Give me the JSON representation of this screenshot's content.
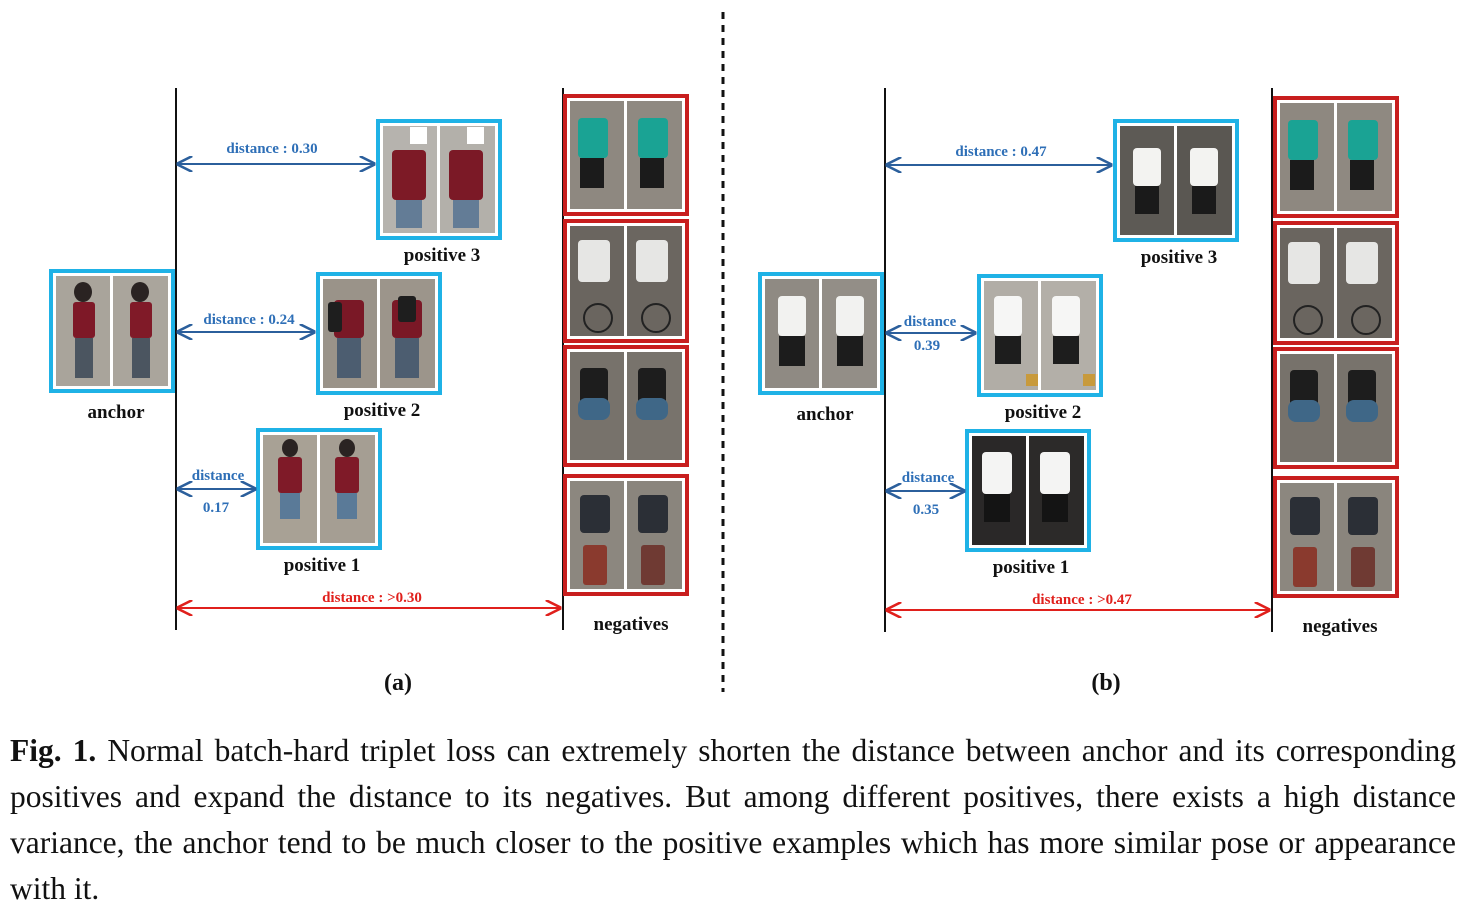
{
  "panels": [
    {
      "id": "a",
      "label": "(a)",
      "anchor_label": "anchor",
      "positives": [
        {
          "label": "positive 3",
          "distance_line1": "distance : 0.30",
          "distance_line2": ""
        },
        {
          "label": "positive 2",
          "distance_line1": "distance : 0.24",
          "distance_line2": ""
        },
        {
          "label": "positive 1",
          "distance_line1": "distance",
          "distance_line2": "0.17"
        }
      ],
      "negatives_label": "negatives",
      "negative_distance": "distance : >0.30"
    },
    {
      "id": "b",
      "label": "(b)",
      "anchor_label": "anchor",
      "positives": [
        {
          "label": "positive 3",
          "distance_line1": "distance : 0.47",
          "distance_line2": ""
        },
        {
          "label": "positive 2",
          "distance_line1": "distance",
          "distance_line2": "0.39"
        },
        {
          "label": "positive 1",
          "distance_line1": "distance",
          "distance_line2": "0.35"
        }
      ],
      "negatives_label": "negatives",
      "negative_distance": "distance : >0.47"
    }
  ],
  "colors": {
    "positive_frame": "#1fb2e6",
    "negative_frame": "#c81e1e",
    "distance_text": "#2e6fb7",
    "negative_distance_text": "#e0201c",
    "arrow": "#2b5f9c",
    "negative_arrow": "#e0201c"
  },
  "caption": {
    "label": "Fig. 1.",
    "text": "Normal batch-hard triplet loss can extremely shorten the distance between anchor and its corresponding positives and expand the distance to its negatives. But among different positives, there exists a high distance variance, the anchor tend to be much closer to the positive examples which has more similar pose or appearance with it."
  }
}
